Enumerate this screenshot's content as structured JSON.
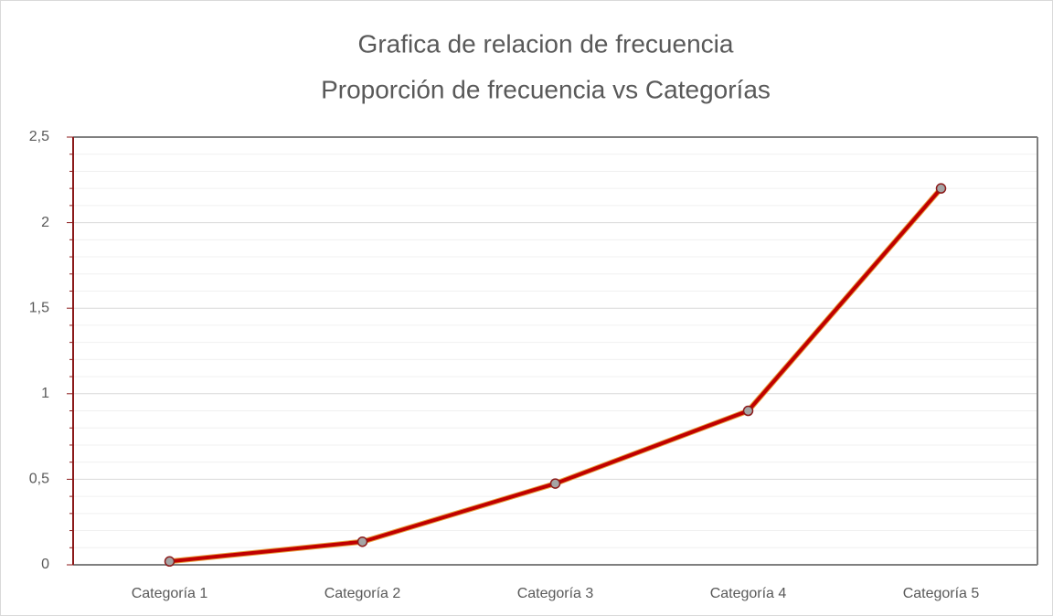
{
  "chart_data": {
    "type": "line",
    "title": "Grafica de relacion de frecuencia",
    "subtitle": "Proporción de frecuencia vs Categorías",
    "categories": [
      "Categoría 1",
      "Categoría 2",
      "Categoría 3",
      "Categoría 4",
      "Categoría 5"
    ],
    "values": [
      0.02,
      0.135,
      0.475,
      0.9,
      2.2
    ],
    "color": "#c00000",
    "marker_color": "#a5a5a5",
    "ylim": [
      0,
      2.5
    ],
    "yticks": [
      0,
      {
        "value": 0.5,
        "label": "0,5"
      },
      1,
      {
        "value": 1.5,
        "label": "1,5"
      },
      2,
      {
        "value": 2.5,
        "label": "2,5"
      }
    ],
    "minor_yticks": [
      0.1,
      0.2,
      0.3,
      0.4,
      0.6,
      0.7,
      0.8,
      0.9,
      1.1,
      1.2,
      1.3,
      1.4,
      1.6,
      1.7,
      1.8,
      1.9,
      2.1,
      2.2,
      2.3,
      2.4
    ],
    "grid": true
  }
}
